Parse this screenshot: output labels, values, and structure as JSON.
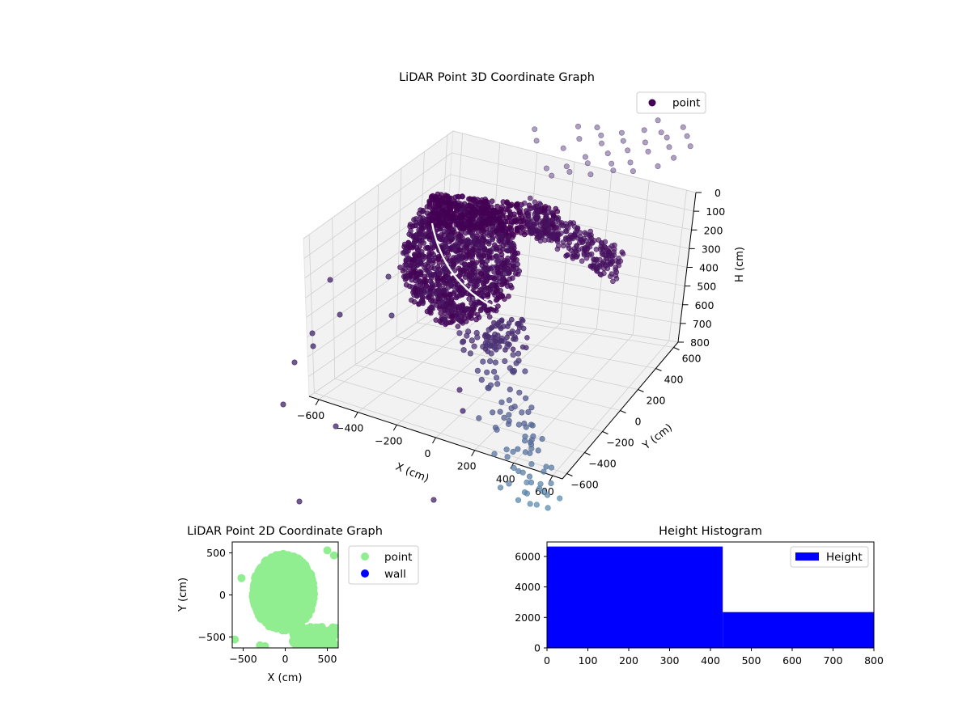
{
  "colors": {
    "point_dark": "#440154",
    "point_purple": "#4b2f72",
    "point_teal": "#5f93b3",
    "pane_fill": "#f2f2f2",
    "grid": "#d0d0d0",
    "point_2d": "#90ee90",
    "wall_2d": "#0000ff",
    "hist_bar": "#0000ff"
  },
  "chart_data": [
    {
      "type": "scatter",
      "projection": "3d",
      "title": "LiDAR Point 3D Coordinate Graph",
      "xlabel": "X (cm)",
      "ylabel": "Y (cm)",
      "zlabel": "H (cm)",
      "xticks": [
        -600,
        -400,
        -200,
        0,
        200,
        400,
        600
      ],
      "yticks": [
        -600,
        -400,
        -200,
        0,
        200,
        400,
        600
      ],
      "zticks": [
        0,
        100,
        200,
        300,
        400,
        500,
        600,
        700,
        800
      ],
      "xlim": [
        -650,
        650
      ],
      "ylim": [
        -650,
        650
      ],
      "zlim": [
        800,
        0
      ],
      "legend": {
        "location": "top-right",
        "entries": [
          "point"
        ]
      },
      "series": [
        {
          "name": "point"
        }
      ]
    },
    {
      "type": "scatter",
      "title": "LiDAR Point 2D Coordinate Graph",
      "xlabel": "X (cm)",
      "ylabel": "Y (cm)",
      "xticks": [
        -500,
        0,
        500
      ],
      "yticks": [
        -500,
        0,
        500
      ],
      "xlim": [
        -630,
        630
      ],
      "ylim": [
        -630,
        630
      ],
      "legend": {
        "location": "outside right",
        "entries": [
          "point",
          "wall"
        ]
      },
      "series": [
        {
          "name": "point"
        },
        {
          "name": "wall"
        }
      ]
    },
    {
      "type": "bar",
      "subtype": "histogram",
      "title": "Height Histogram",
      "xticks": [
        0,
        100,
        200,
        300,
        400,
        500,
        600,
        700,
        800
      ],
      "yticks": [
        0,
        2000,
        4000,
        6000
      ],
      "xlim": [
        0,
        800
      ],
      "ylim": [
        0,
        6950
      ],
      "bins": [
        {
          "x_start": 0,
          "x_end": 430,
          "value": 6650
        },
        {
          "x_start": 430,
          "x_end": 800,
          "value": 2350
        }
      ],
      "legend": {
        "location": "top-right",
        "entries": [
          "Height"
        ]
      },
      "series": [
        {
          "name": "Height"
        }
      ]
    }
  ]
}
